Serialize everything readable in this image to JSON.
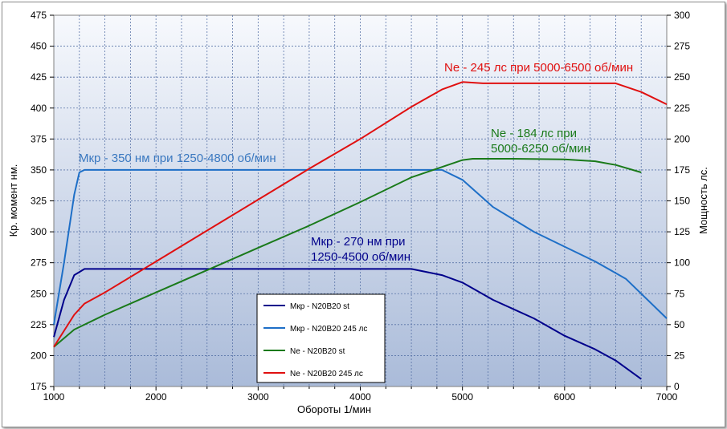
{
  "chart_data": {
    "type": "line",
    "xlabel": "Обороты 1/мин",
    "ylabel_left": "Кр. момент  нм.",
    "ylabel_right": "Мощность  лс.",
    "xlim": [
      1000,
      7000
    ],
    "ylim_left": [
      175,
      475
    ],
    "ylim_right": [
      0,
      300
    ],
    "x_ticks": [
      1000,
      2000,
      3000,
      4000,
      5000,
      6000,
      7000
    ],
    "y_left_ticks": [
      175,
      200,
      225,
      250,
      275,
      300,
      325,
      350,
      375,
      400,
      425,
      450,
      475
    ],
    "y_right_ticks": [
      0,
      25,
      50,
      75,
      100,
      125,
      150,
      175,
      200,
      225,
      250,
      275,
      300
    ],
    "grid": true,
    "legend_position": "bottom-center",
    "series": [
      {
        "name": "Мкр - N20B20 st",
        "axis": "left",
        "color": "#00008b",
        "points": [
          [
            1000,
            215
          ],
          [
            1100,
            245
          ],
          [
            1200,
            265
          ],
          [
            1300,
            270
          ],
          [
            1500,
            270
          ],
          [
            2000,
            270
          ],
          [
            3000,
            270
          ],
          [
            4000,
            270
          ],
          [
            4500,
            270
          ],
          [
            4800,
            265
          ],
          [
            5000,
            259
          ],
          [
            5300,
            245
          ],
          [
            5700,
            230
          ],
          [
            6000,
            216
          ],
          [
            6300,
            205
          ],
          [
            6500,
            196
          ],
          [
            6750,
            181
          ]
        ]
      },
      {
        "name": "Мкр - N20B20 245 лс",
        "axis": "left",
        "color": "#1e6fc7",
        "points": [
          [
            1000,
            225
          ],
          [
            1100,
            275
          ],
          [
            1200,
            330
          ],
          [
            1250,
            348
          ],
          [
            1300,
            350
          ],
          [
            2000,
            350
          ],
          [
            3000,
            350
          ],
          [
            4000,
            350
          ],
          [
            4800,
            350
          ],
          [
            5000,
            342
          ],
          [
            5300,
            320
          ],
          [
            5700,
            300
          ],
          [
            6000,
            288
          ],
          [
            6300,
            276
          ],
          [
            6600,
            262
          ],
          [
            7000,
            230
          ]
        ]
      },
      {
        "name": "Ne  -  N20B20 st",
        "axis": "right",
        "color": "#1a7a1a",
        "points": [
          [
            1000,
            32
          ],
          [
            1200,
            46
          ],
          [
            1500,
            58
          ],
          [
            2000,
            76
          ],
          [
            2500,
            94
          ],
          [
            3000,
            112
          ],
          [
            3500,
            130
          ],
          [
            4000,
            149
          ],
          [
            4500,
            169
          ],
          [
            5000,
            183
          ],
          [
            5100,
            184
          ],
          [
            5500,
            184
          ],
          [
            6000,
            183.5
          ],
          [
            6300,
            182
          ],
          [
            6500,
            179
          ],
          [
            6750,
            173
          ]
        ]
      },
      {
        "name": "Ne - N20B20 245 лс",
        "axis": "right",
        "color": "#e01010",
        "points": [
          [
            1000,
            32
          ],
          [
            1200,
            58
          ],
          [
            1300,
            67
          ],
          [
            1500,
            76
          ],
          [
            2000,
            101
          ],
          [
            2500,
            126
          ],
          [
            3000,
            151
          ],
          [
            3500,
            176
          ],
          [
            4000,
            200
          ],
          [
            4500,
            226
          ],
          [
            4800,
            240
          ],
          [
            5000,
            246
          ],
          [
            5200,
            245
          ],
          [
            6000,
            245
          ],
          [
            6500,
            245
          ],
          [
            6750,
            238
          ],
          [
            7000,
            228
          ]
        ]
      }
    ],
    "annotations": [
      {
        "text": "Мкр - 350 нм при 1250-4800 об/мин",
        "color": "#3a78c0"
      },
      {
        "text": "Ne - 245 лс при 5000-6500 об/мин",
        "color": "#e01010"
      },
      {
        "text": "Ne - 184 лс при",
        "color": "#1a7a1a"
      },
      {
        "text": "5000-6250 об/мин",
        "color": "#1a7a1a"
      },
      {
        "text": "Мкр - 270 нм при",
        "color": "#00008b"
      },
      {
        "text": "1250-4500 об/мин",
        "color": "#00008b"
      }
    ]
  }
}
